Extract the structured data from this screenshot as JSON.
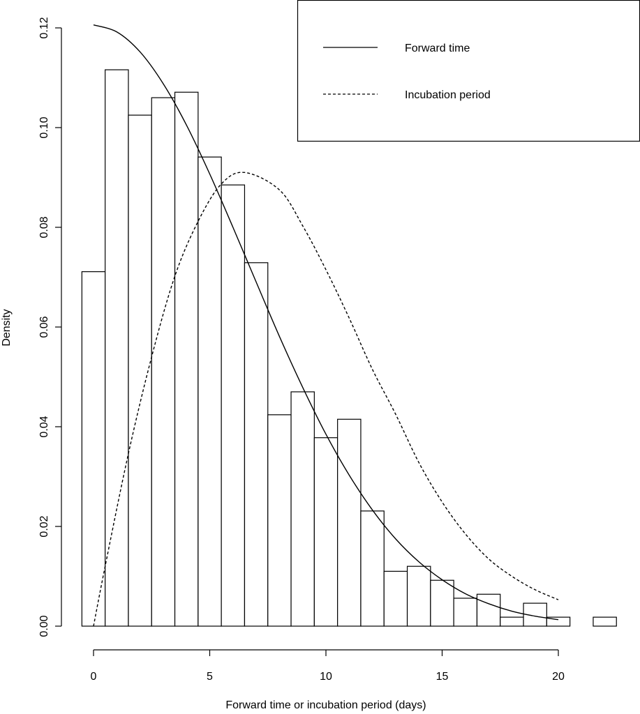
{
  "chart_data": {
    "type": "bar",
    "title": "",
    "xlabel": "Forward time or incubation period (days)",
    "ylabel": "Density",
    "xlim": [
      -0.5,
      22.5
    ],
    "ylim": [
      0,
      0.12
    ],
    "grid": false,
    "x_ticks": [
      0,
      5,
      10,
      15,
      20
    ],
    "x_tick_labels": [
      "0",
      "5",
      "10",
      "15",
      "20"
    ],
    "y_ticks": [
      0,
      0.02,
      0.04,
      0.06,
      0.08,
      0.1,
      0.12
    ],
    "y_tick_labels": [
      "0.00",
      "0.02",
      "0.04",
      "0.06",
      "0.08",
      "0.10",
      "0.12"
    ],
    "histogram": {
      "bin_width": 1,
      "bin_starts": [
        -0.5,
        0.5,
        1.5,
        2.5,
        3.5,
        4.5,
        5.5,
        6.5,
        7.5,
        8.5,
        9.5,
        10.5,
        11.5,
        12.5,
        13.5,
        14.5,
        15.5,
        16.5,
        17.5,
        18.5,
        19.5,
        20.5,
        21.5
      ],
      "density": [
        0.0711,
        0.1116,
        0.1025,
        0.106,
        0.1071,
        0.0941,
        0.0885,
        0.0729,
        0.0424,
        0.047,
        0.0378,
        0.0415,
        0.0231,
        0.011,
        0.012,
        0.0092,
        0.0056,
        0.0064,
        0.0018,
        0.0046,
        0.0018,
        0,
        0.0018
      ]
    },
    "series": [
      {
        "name": "Forward time",
        "style": "solid",
        "x": [
          0,
          1,
          2,
          3,
          4,
          5,
          6,
          7,
          8,
          9,
          10,
          11,
          12,
          13,
          14,
          15,
          16,
          17,
          18,
          19,
          20
        ],
        "y": [
          0.1206,
          0.1192,
          0.1152,
          0.1088,
          0.1005,
          0.0907,
          0.08,
          0.069,
          0.0581,
          0.0479,
          0.0385,
          0.0303,
          0.0233,
          0.0175,
          0.0129,
          0.0093,
          0.0065,
          0.0045,
          0.003,
          0.002,
          0.0013
        ]
      },
      {
        "name": "Incubation period",
        "style": "dashed",
        "x": [
          0,
          0.5,
          1.5,
          2.5,
          3.5,
          4.5,
          5.5,
          6.5,
          8,
          9,
          10,
          11,
          12,
          13,
          14,
          15,
          16,
          17,
          18,
          19,
          20
        ],
        "y": [
          0,
          0.012,
          0.0346,
          0.054,
          0.0702,
          0.0812,
          0.0887,
          0.091,
          0.0875,
          0.0803,
          0.0715,
          0.0618,
          0.0515,
          0.0425,
          0.0328,
          0.0249,
          0.0185,
          0.0135,
          0.01,
          0.0073,
          0.0053
        ]
      }
    ],
    "legend": {
      "placement": "top-right",
      "entries": [
        "Forward time",
        "Incubation period"
      ]
    }
  }
}
